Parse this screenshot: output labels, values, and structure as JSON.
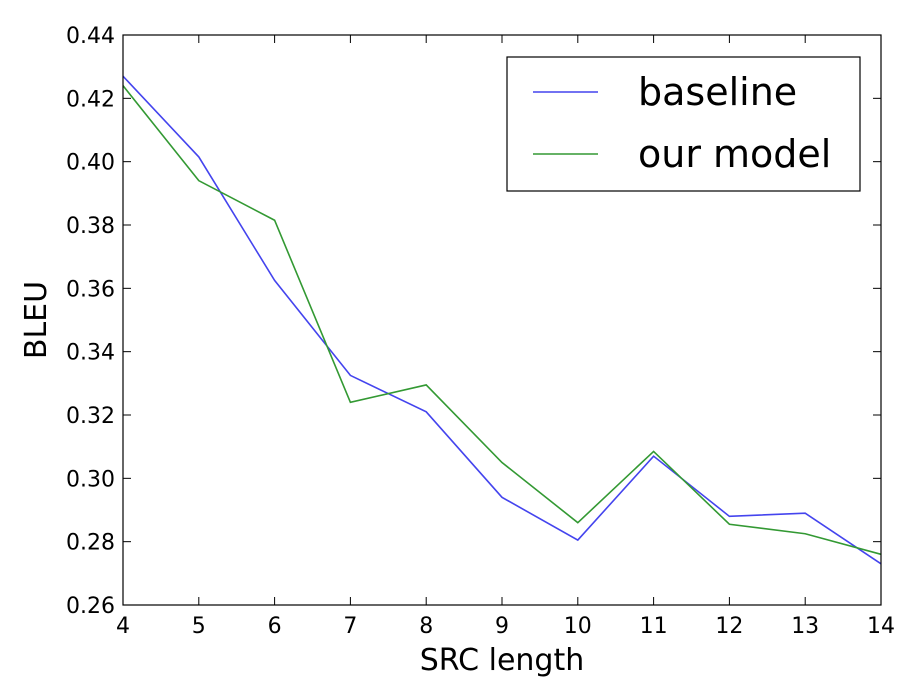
{
  "chart_data": {
    "type": "line",
    "xlabel": "SRC length",
    "ylabel": "BLEU",
    "xlim": [
      4,
      14
    ],
    "ylim": [
      0.26,
      0.44
    ],
    "xticks": [
      "4",
      "5",
      "6",
      "7",
      "8",
      "9",
      "10",
      "11",
      "12",
      "13",
      "14"
    ],
    "yticks": [
      "0.26",
      "0.28",
      "0.30",
      "0.32",
      "0.34",
      "0.36",
      "0.38",
      "0.40",
      "0.42",
      "0.44"
    ],
    "grid": false,
    "legend_position": "top-right",
    "x": [
      4,
      5,
      6,
      7,
      8,
      9,
      10,
      11,
      12,
      13,
      14
    ],
    "series": [
      {
        "name": "baseline",
        "color": "#4444ee",
        "values": [
          0.427,
          0.4015,
          0.3625,
          0.3325,
          0.321,
          0.294,
          0.2805,
          0.307,
          0.288,
          0.289,
          0.273
        ]
      },
      {
        "name": "our model",
        "color": "#339933",
        "values": [
          0.424,
          0.394,
          0.3815,
          0.324,
          0.3295,
          0.305,
          0.286,
          0.3085,
          0.2855,
          0.2825,
          0.276
        ]
      }
    ]
  }
}
